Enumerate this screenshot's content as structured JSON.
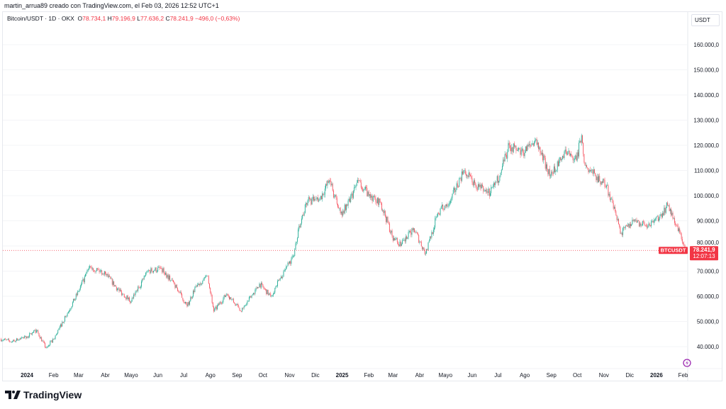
{
  "caption": "martin_arrua89 creado con TradingView.com, el Feb 03, 2026 12:52 UTC+1",
  "legend": {
    "symbol": "Bitcoin/USDT · 1D · OKX",
    "open_label": "O",
    "open": "78.734,1",
    "high_label": "H",
    "high": "79.196,9",
    "low_label": "L",
    "low": "77.636,2",
    "close_label": "C",
    "close": "78.241,9",
    "change": "−496,0 (−0,63%)"
  },
  "currency": "USDT",
  "price_tag": {
    "symbol": "BTCUSDT",
    "price": "78.241,9",
    "countdown": "12:07:13"
  },
  "logo_text": "TradingView",
  "colors": {
    "up": "#22ab94",
    "down": "#f7525f",
    "last_price": "#f23645",
    "alert_icon": "#9c27b0"
  },
  "icons": [
    "tradingview-logo-icon",
    "lightning-alert-icon"
  ],
  "chart_data": {
    "type": "candlestick",
    "interval": "1D",
    "y_ticks": [
      "40.000,0",
      "50.000,0",
      "60.000,0",
      "70.000,0",
      "80.000,0",
      "90.000,0",
      "100.000,0",
      "110.000,0",
      "120.000,0",
      "130.000,0",
      "140.000,0",
      "150.000,0",
      "160.000,0"
    ],
    "ylim": [
      36000,
      172000
    ],
    "x_ticks": [
      {
        "label": "2024",
        "date": "2024-01-01",
        "bold": true
      },
      {
        "label": "Feb",
        "date": "2024-02-01"
      },
      {
        "label": "Mar",
        "date": "2024-03-01"
      },
      {
        "label": "Abr",
        "date": "2024-04-01"
      },
      {
        "label": "Mayo",
        "date": "2024-05-01"
      },
      {
        "label": "Jun",
        "date": "2024-06-01"
      },
      {
        "label": "Jul",
        "date": "2024-07-01"
      },
      {
        "label": "Ago",
        "date": "2024-08-01"
      },
      {
        "label": "Sep",
        "date": "2024-09-01"
      },
      {
        "label": "Oct",
        "date": "2024-10-01"
      },
      {
        "label": "Nov",
        "date": "2024-11-01"
      },
      {
        "label": "Dic",
        "date": "2024-12-01"
      },
      {
        "label": "2025",
        "date": "2025-01-01",
        "bold": true
      },
      {
        "label": "Feb",
        "date": "2025-02-01"
      },
      {
        "label": "Mar",
        "date": "2025-03-01"
      },
      {
        "label": "Abr",
        "date": "2025-04-01"
      },
      {
        "label": "Mayo",
        "date": "2025-05-01"
      },
      {
        "label": "Jun",
        "date": "2025-06-01"
      },
      {
        "label": "Jul",
        "date": "2025-07-01"
      },
      {
        "label": "Ago",
        "date": "2025-08-01"
      },
      {
        "label": "Sep",
        "date": "2025-09-01"
      },
      {
        "label": "Oct",
        "date": "2025-10-01"
      },
      {
        "label": "Nov",
        "date": "2025-11-01"
      },
      {
        "label": "Dic",
        "date": "2025-12-01"
      },
      {
        "label": "2026",
        "date": "2026-01-01",
        "bold": true
      },
      {
        "label": "Feb",
        "date": "2026-02-01"
      }
    ],
    "last_price": 78241.9,
    "closes": [
      [
        "2023-12-01",
        43000
      ],
      [
        "2023-12-15",
        42000
      ],
      [
        "2024-01-01",
        44000
      ],
      [
        "2024-01-12",
        46500
      ],
      [
        "2024-01-23",
        39500
      ],
      [
        "2024-02-01",
        43000
      ],
      [
        "2024-02-15",
        52000
      ],
      [
        "2024-03-01",
        62000
      ],
      [
        "2024-03-14",
        72000
      ],
      [
        "2024-04-01",
        69000
      ],
      [
        "2024-04-15",
        63000
      ],
      [
        "2024-05-01",
        58000
      ],
      [
        "2024-05-20",
        70000
      ],
      [
        "2024-06-05",
        71000
      ],
      [
        "2024-06-20",
        65000
      ],
      [
        "2024-07-05",
        56000
      ],
      [
        "2024-07-15",
        64000
      ],
      [
        "2024-07-29",
        68000
      ],
      [
        "2024-08-05",
        54000
      ],
      [
        "2024-08-20",
        61000
      ],
      [
        "2024-09-06",
        54000
      ],
      [
        "2024-09-27",
        65000
      ],
      [
        "2024-10-10",
        60000
      ],
      [
        "2024-10-29",
        72000
      ],
      [
        "2024-11-06",
        76000
      ],
      [
        "2024-11-12",
        88000
      ],
      [
        "2024-11-22",
        98000
      ],
      [
        "2024-12-05",
        98000
      ],
      [
        "2024-12-17",
        106000
      ],
      [
        "2024-12-30",
        93000
      ],
      [
        "2025-01-07",
        96000
      ],
      [
        "2025-01-20",
        106000
      ],
      [
        "2025-02-01",
        100000
      ],
      [
        "2025-02-15",
        97000
      ],
      [
        "2025-02-28",
        84000
      ],
      [
        "2025-03-10",
        80000
      ],
      [
        "2025-03-25",
        87000
      ],
      [
        "2025-04-08",
        77000
      ],
      [
        "2025-04-22",
        93000
      ],
      [
        "2025-05-08",
        99000
      ],
      [
        "2025-05-22",
        110000
      ],
      [
        "2025-06-05",
        104000
      ],
      [
        "2025-06-22",
        101000
      ],
      [
        "2025-07-03",
        108000
      ],
      [
        "2025-07-14",
        120000
      ],
      [
        "2025-07-30",
        117000
      ],
      [
        "2025-08-13",
        122000
      ],
      [
        "2025-08-31",
        108000
      ],
      [
        "2025-09-18",
        117000
      ],
      [
        "2025-09-30",
        114000
      ],
      [
        "2025-10-06",
        124000
      ],
      [
        "2025-10-10",
        112000
      ],
      [
        "2025-10-22",
        108000
      ],
      [
        "2025-11-04",
        104000
      ],
      [
        "2025-11-21",
        85000
      ],
      [
        "2025-12-05",
        90000
      ],
      [
        "2025-12-20",
        88000
      ],
      [
        "2026-01-05",
        92000
      ],
      [
        "2026-01-14",
        96000
      ],
      [
        "2026-01-25",
        88000
      ],
      [
        "2026-02-03",
        78241.9
      ]
    ]
  }
}
